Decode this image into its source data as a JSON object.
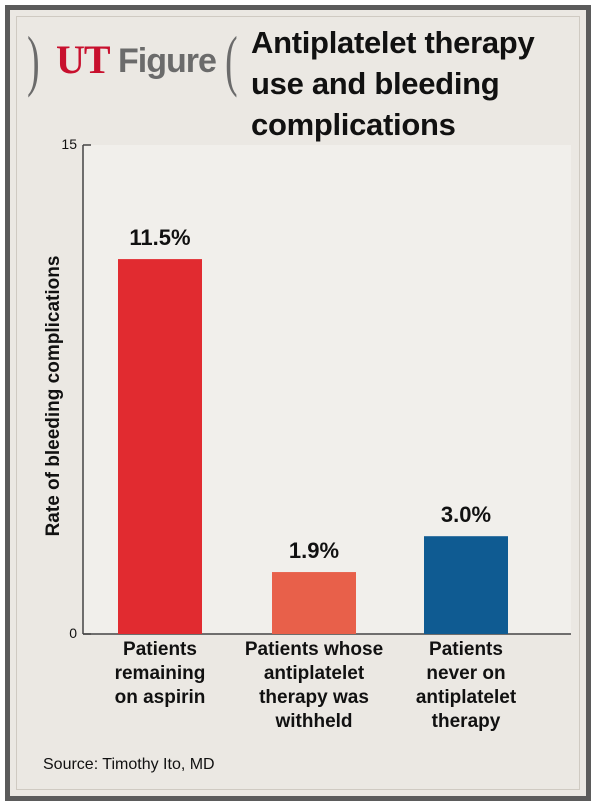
{
  "header": {
    "logo_ut": "UT",
    "logo_figure": "Figure",
    "title": "Antiplatelet therapy use and bleeding complications"
  },
  "chart_data": {
    "type": "bar",
    "title": "Antiplatelet therapy use and bleeding complications",
    "categories": [
      "Patients remaining on aspirin",
      "Patients whose antiplatelet therapy was withheld",
      "Patients never on antiplatelet therapy"
    ],
    "category_display": [
      "Patients\nremaining\non aspirin",
      "Patients whose\nantiplatelet\ntherapy was\nwithheld",
      "Patients\nnever on\nantiplatelet\ntherapy"
    ],
    "values": [
      11.5,
      1.9,
      3.0
    ],
    "value_labels": [
      "11.5%",
      "1.9%",
      "3.0%"
    ],
    "colors": [
      "#e12b30",
      "#e8604a",
      "#0f5b92"
    ],
    "xlabel": "",
    "ylabel": "Rate of bleeding complications",
    "ylim": [
      0,
      15
    ],
    "yticks": [
      0,
      15
    ],
    "ytick_labels": [
      "0",
      "15"
    ],
    "grid": false,
    "legend": "none"
  },
  "footer": {
    "source": "Source: Timothy Ito, MD"
  }
}
